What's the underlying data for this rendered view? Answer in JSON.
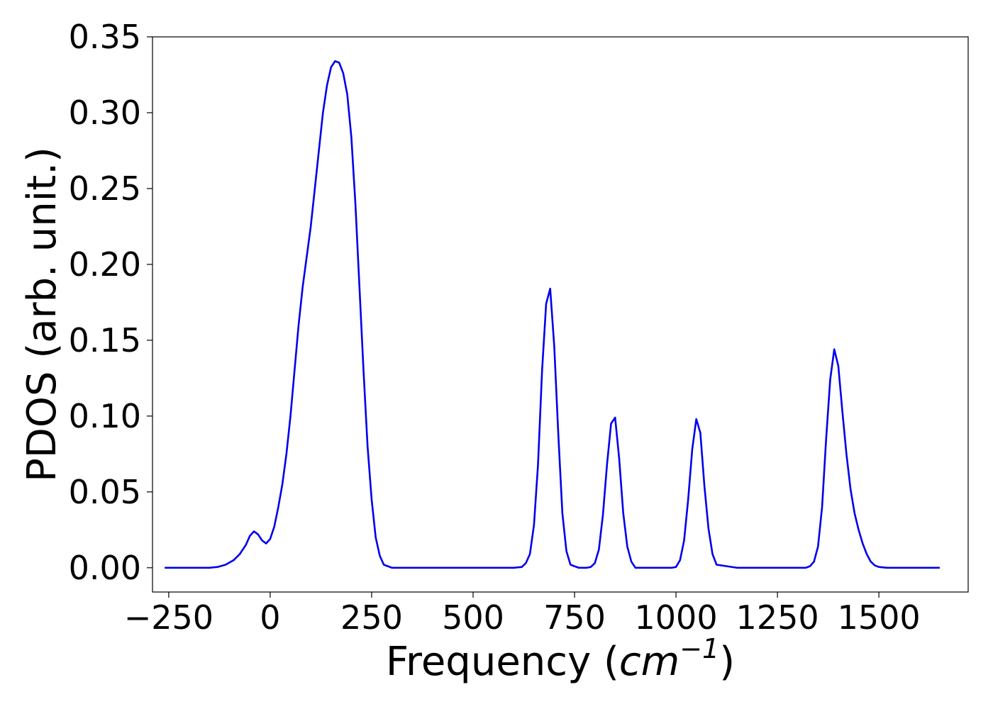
{
  "chart_data": {
    "type": "line",
    "xlabel": "Frequency (cm⁻¹)",
    "xlabel_parts": {
      "prefix": "Frequency (",
      "unit_base": "cm",
      "unit_exp": "−1",
      "suffix": ")"
    },
    "ylabel": "PDOS (arb. unit.)",
    "xlim": [
      -290,
      1720
    ],
    "ylim": [
      -0.016,
      0.35
    ],
    "xticks": [
      -250,
      0,
      250,
      500,
      750,
      1000,
      1250,
      1500
    ],
    "xtick_labels": [
      "−250",
      "0",
      "250",
      "500",
      "750",
      "1000",
      "1250",
      "1500"
    ],
    "yticks": [
      0.0,
      0.05,
      0.1,
      0.15,
      0.2,
      0.25,
      0.3,
      0.35
    ],
    "ytick_labels": [
      "0.00",
      "0.05",
      "0.10",
      "0.15",
      "0.20",
      "0.25",
      "0.30",
      "0.35"
    ],
    "grid": false,
    "series": [
      {
        "color": "#0000ee",
        "x": [
          -260,
          -150,
          -130,
          -110,
          -90,
          -75,
          -60,
          -50,
          -40,
          -30,
          -20,
          -10,
          0,
          10,
          20,
          30,
          40,
          50,
          60,
          70,
          80,
          90,
          100,
          110,
          120,
          130,
          140,
          150,
          160,
          170,
          180,
          190,
          200,
          210,
          220,
          230,
          240,
          250,
          260,
          270,
          280,
          300,
          400,
          500,
          600,
          620,
          630,
          640,
          650,
          660,
          670,
          680,
          690,
          700,
          710,
          720,
          730,
          740,
          760,
          780,
          790,
          800,
          810,
          820,
          830,
          840,
          850,
          860,
          870,
          880,
          890,
          900,
          950,
          990,
          1000,
          1010,
          1020,
          1030,
          1040,
          1050,
          1060,
          1070,
          1080,
          1090,
          1100,
          1150,
          1250,
          1320,
          1330,
          1340,
          1350,
          1360,
          1370,
          1380,
          1390,
          1400,
          1410,
          1420,
          1430,
          1440,
          1450,
          1460,
          1470,
          1480,
          1490,
          1500,
          1520,
          1600,
          1650
        ],
        "y": [
          0.0,
          0.0,
          0.0005,
          0.002,
          0.005,
          0.009,
          0.015,
          0.021,
          0.024,
          0.022,
          0.018,
          0.016,
          0.019,
          0.027,
          0.04,
          0.055,
          0.075,
          0.1,
          0.13,
          0.16,
          0.185,
          0.205,
          0.225,
          0.25,
          0.275,
          0.3,
          0.318,
          0.33,
          0.334,
          0.333,
          0.326,
          0.312,
          0.284,
          0.24,
          0.185,
          0.13,
          0.08,
          0.045,
          0.02,
          0.008,
          0.002,
          0.0,
          0.0,
          0.0,
          0.0,
          0.0005,
          0.003,
          0.009,
          0.028,
          0.068,
          0.13,
          0.174,
          0.184,
          0.146,
          0.088,
          0.036,
          0.011,
          0.002,
          0.0,
          0.0,
          0.0005,
          0.003,
          0.012,
          0.035,
          0.068,
          0.095,
          0.099,
          0.072,
          0.036,
          0.014,
          0.004,
          0.0,
          0.0,
          0.0,
          0.0005,
          0.005,
          0.018,
          0.045,
          0.078,
          0.098,
          0.089,
          0.054,
          0.026,
          0.009,
          0.002,
          0.0,
          0.0,
          0.0,
          0.001,
          0.004,
          0.014,
          0.04,
          0.085,
          0.124,
          0.144,
          0.133,
          0.103,
          0.075,
          0.052,
          0.036,
          0.025,
          0.016,
          0.009,
          0.004,
          0.0015,
          0.0005,
          0.0,
          0.0,
          0.0
        ]
      }
    ]
  }
}
